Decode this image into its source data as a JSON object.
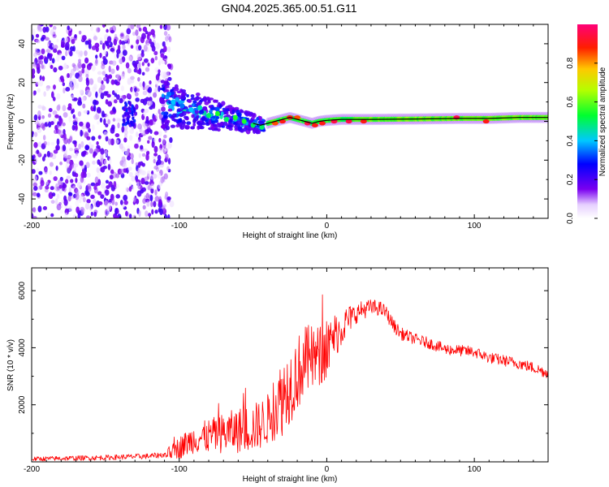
{
  "title": "GN04.2025.365.00.51.G11",
  "colors": {
    "snr_line": "#ff0000",
    "centroid_line": "#000000",
    "scatter_main": "#6a00f0",
    "scatter_faint": "#d7b9ff"
  },
  "chart_data": [
    {
      "type": "heatmap",
      "name": "spectrogram",
      "xlabel": "Height of straight line (km)",
      "ylabel": "Frequency (Hz)",
      "xlim": [
        -200,
        150
      ],
      "ylim": [
        -50,
        50
      ],
      "xticks": [
        -200,
        -100,
        0,
        100
      ],
      "yticks": [
        -40,
        -20,
        0,
        20,
        40
      ],
      "colorbar": {
        "label": "Normalized spectral amplitude",
        "range": [
          0,
          1
        ],
        "ticks": [
          0.0,
          0.2,
          0.4,
          0.6,
          0.8
        ],
        "tick_labels": [
          "0.0",
          "0.2",
          "0.4",
          "0.6",
          "0.8"
        ],
        "colormap": "rainbow (white-violet-blue-cyan-green-yellow-red-magenta)"
      },
      "centroid_line": {
        "x": [
          -110,
          -100,
          -90,
          -80,
          -70,
          -60,
          -50,
          -45,
          -40,
          -35,
          -30,
          -25,
          -20,
          -15,
          -10,
          -5,
          0,
          10,
          30,
          60,
          90,
          110,
          130,
          150
        ],
        "y": [
          10,
          7,
          6,
          4,
          3,
          1,
          -1,
          -2,
          -1,
          0,
          1,
          2,
          1,
          0,
          -1,
          0,
          0.5,
          1,
          1,
          1.2,
          1.5,
          1.5,
          2,
          2
        ]
      },
      "noise_region": {
        "x_range": [
          -200,
          -110
        ],
        "freq_range": [
          -50,
          50
        ],
        "amplitude": [
          0.05,
          0.3
        ]
      },
      "ridge_blobs": [
        {
          "x": -107,
          "y": 14,
          "amp": 0.35
        },
        {
          "x": -104,
          "y": 10,
          "amp": 0.4
        },
        {
          "x": -98,
          "y": 8,
          "amp": 0.35
        },
        {
          "x": -92,
          "y": 6,
          "amp": 0.4
        },
        {
          "x": -86,
          "y": 7,
          "amp": 0.45
        },
        {
          "x": -80,
          "y": 3,
          "amp": 0.5
        },
        {
          "x": -74,
          "y": 4,
          "amp": 0.55
        },
        {
          "x": -68,
          "y": 1,
          "amp": 0.5
        },
        {
          "x": -62,
          "y": 2,
          "amp": 0.55
        },
        {
          "x": -56,
          "y": 0,
          "amp": 0.55
        },
        {
          "x": -50,
          "y": -2,
          "amp": 0.5
        },
        {
          "x": -44,
          "y": -3,
          "amp": 0.5
        },
        {
          "x": -35,
          "y": -1,
          "amp": 0.85
        },
        {
          "x": -30,
          "y": 0,
          "amp": 0.9
        },
        {
          "x": -25,
          "y": 2,
          "amp": 0.9
        },
        {
          "x": -20,
          "y": 2,
          "amp": 0.85
        },
        {
          "x": -13,
          "y": -1,
          "amp": 0.95
        },
        {
          "x": -8,
          "y": -2,
          "amp": 0.9
        },
        {
          "x": -3,
          "y": -1,
          "amp": 0.9
        },
        {
          "x": 5,
          "y": 0,
          "amp": 0.95
        },
        {
          "x": 15,
          "y": 0,
          "amp": 0.95
        },
        {
          "x": 25,
          "y": 0,
          "amp": 0.9
        },
        {
          "x": 88,
          "y": 2,
          "amp": 0.95
        },
        {
          "x": 108,
          "y": 0,
          "amp": 0.9
        }
      ]
    },
    {
      "type": "line",
      "name": "snr",
      "xlabel": "Height of straight line (km)",
      "ylabel": "SNR (10 * v/v)",
      "xlim": [
        -200,
        150
      ],
      "ylim": [
        0,
        6800
      ],
      "xticks": [
        -200,
        -100,
        0,
        100
      ],
      "yticks": [
        2000,
        4000,
        6000
      ],
      "series": [
        {
          "name": "SNR",
          "x": [
            -200,
            -150,
            -120,
            -110,
            -105,
            -100,
            -90,
            -80,
            -70,
            -60,
            -50,
            -45,
            -40,
            -35,
            -30,
            -25,
            -20,
            -15,
            -10,
            -5,
            0,
            5,
            10,
            15,
            20,
            25,
            30,
            35,
            40,
            45,
            50,
            55,
            60,
            70,
            80,
            90,
            100,
            110,
            120,
            130,
            140,
            150
          ],
          "y": [
            100,
            150,
            200,
            250,
            350,
            500,
            800,
            900,
            1000,
            1100,
            1200,
            1300,
            1500,
            1900,
            2300,
            2700,
            3100,
            3500,
            3600,
            3700,
            3850,
            4400,
            4700,
            5000,
            5200,
            5350,
            5400,
            5400,
            5250,
            4800,
            4500,
            4400,
            4300,
            4150,
            3950,
            3900,
            3850,
            3650,
            3550,
            3450,
            3300,
            3100
          ]
        }
      ],
      "noise_amplitude": {
        "x": [
          -200,
          -110,
          -100,
          -60,
          -40,
          -30,
          -15,
          0,
          20,
          40,
          60,
          150
        ],
        "a": [
          80,
          100,
          400,
          800,
          900,
          1400,
          1300,
          1000,
          350,
          250,
          200,
          200
        ]
      }
    }
  ]
}
